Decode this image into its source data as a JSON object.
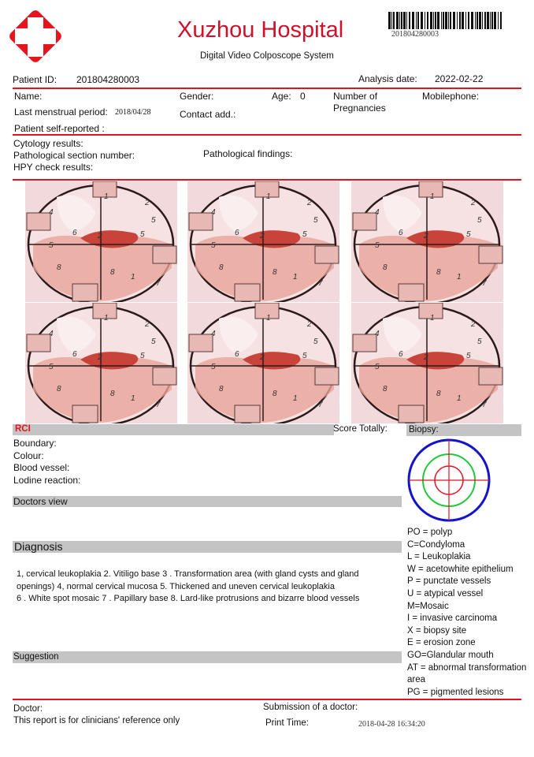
{
  "header": {
    "hospital_name": "Xuzhou Hospital",
    "system_name": "Digital Video Colposcope System",
    "barcode_number": "201804280003",
    "brand_color": "#d0102a"
  },
  "patient": {
    "id_label": "Patient ID:",
    "id_value": "201804280003",
    "analysis_date_label": "Analysis date:",
    "analysis_date_value": "2022-02-22",
    "name_label": "Name:",
    "gender_label": "Gender:",
    "age_label": "Age:",
    "age_value": "0",
    "pregnancies_label_1": "Number of",
    "pregnancies_label_2": "Pregnancies",
    "mobile_label": "Mobilephone:",
    "lmp_label": "Last menstrual period:",
    "lmp_value": "2018/04/28",
    "contact_label": "Contact add.:",
    "self_reported_label": "Patient self-reported :"
  },
  "results": {
    "cytology_label": "Cytology results:",
    "section_label": "Pathological section number:",
    "hpv_label": "HPY check results:",
    "findings_label": "Pathological findings:"
  },
  "images": [
    {
      "labels": [
        "1",
        "2",
        "6",
        "5",
        "4",
        "2",
        "5",
        "5",
        "8",
        "8",
        "1",
        "7"
      ]
    },
    {
      "labels": [
        "1",
        "2",
        "6",
        "5",
        "4",
        "2",
        "5",
        "5",
        "8",
        "8",
        "1",
        "7"
      ]
    },
    {
      "labels": [
        "1",
        "2",
        "6",
        "5",
        "4",
        "2",
        "5",
        "5",
        "8",
        "8",
        "1",
        "7"
      ]
    },
    {
      "labels": [
        "1",
        "2",
        "6",
        "5",
        "4",
        "2",
        "5",
        "5",
        "8",
        "8",
        "1",
        "7"
      ]
    },
    {
      "labels": [
        "1",
        "2",
        "6",
        "5",
        "4",
        "2",
        "5",
        "5",
        "8",
        "8",
        "1",
        "7"
      ]
    },
    {
      "labels": [
        "1",
        "2",
        "6",
        "5",
        "4",
        "2",
        "5",
        "5",
        "8",
        "8",
        "1",
        "7"
      ]
    }
  ],
  "rci": {
    "title": "RCI",
    "score_label": "Score Totally:",
    "boundary_label": "Boundary:",
    "colour_label": "Colour:",
    "vessel_label": "Blood vessel:",
    "iodine_label": "Lodine reaction:"
  },
  "biopsy": {
    "title": "Biopsy:",
    "legend": [
      "PO = polyp",
      "C=Condyloma",
      "L = Leukoplakia",
      "W = acetowhite epithelium",
      "P = punctate vessels",
      "U = atypical vessel",
      "M=Mosaic",
      "I = invasive carcinoma",
      "X = biopsy site",
      "E = erosion zone",
      "GO=Glandular mouth",
      "AT = abnormal transformation",
      "area",
      "PG = pigmented lesions"
    ]
  },
  "sections": {
    "doctors_view": "Doctors view",
    "diagnosis": "Diagnosis",
    "diagnosis_lines": [
      "1, cervical leukoplakia 2. Vitiligo base 3 . Transformation area (with gland cysts and gland",
      "openings) 4, normal cervical mucosa 5. Thickened and uneven cervical leukoplakia",
      "6 . White spot mosaic 7 . Papillary base 8. Lard-like protrusions and bizarre blood vessels"
    ],
    "suggestion": "Suggestion"
  },
  "footer": {
    "doctor_label": "Doctor:",
    "disclaimer": "This report is for clinicians' reference only",
    "submission_label": "Submission of a doctor:",
    "print_time_label": "Print Time:",
    "print_time_value": "2018-04-28  16:34:20"
  }
}
